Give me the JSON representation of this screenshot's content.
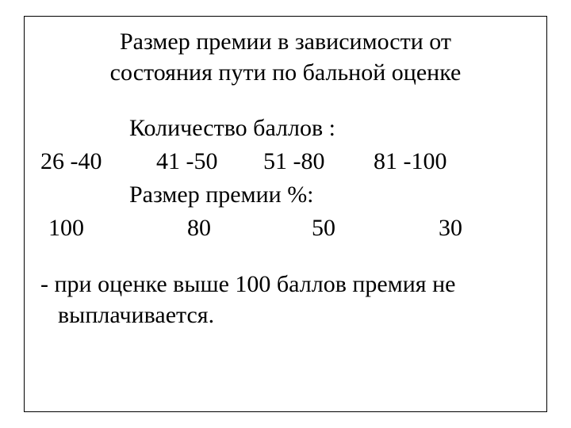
{
  "title": {
    "line1": "Размер премии в зависимости от",
    "line2": "состояния пути по бальной оценке"
  },
  "scores_label": "Количество баллов :",
  "scores": {
    "range1": "26 -40",
    "range2": "41 -50",
    "range3": "51 -80",
    "range4": "81 -100"
  },
  "bonus_label": "Размер премии %:",
  "bonus": {
    "val1": "100",
    "val2": "80",
    "val3": "50",
    "val4": "30"
  },
  "note": {
    "line1": "- при оценке выше 100 баллов премия не",
    "line2": "выплачивается."
  },
  "styling": {
    "font_family": "Times New Roman",
    "title_fontsize": 30,
    "body_fontsize": 30,
    "text_color": "#000000",
    "background_color": "#ffffff",
    "border_color": "#000000",
    "border_width": 1
  }
}
